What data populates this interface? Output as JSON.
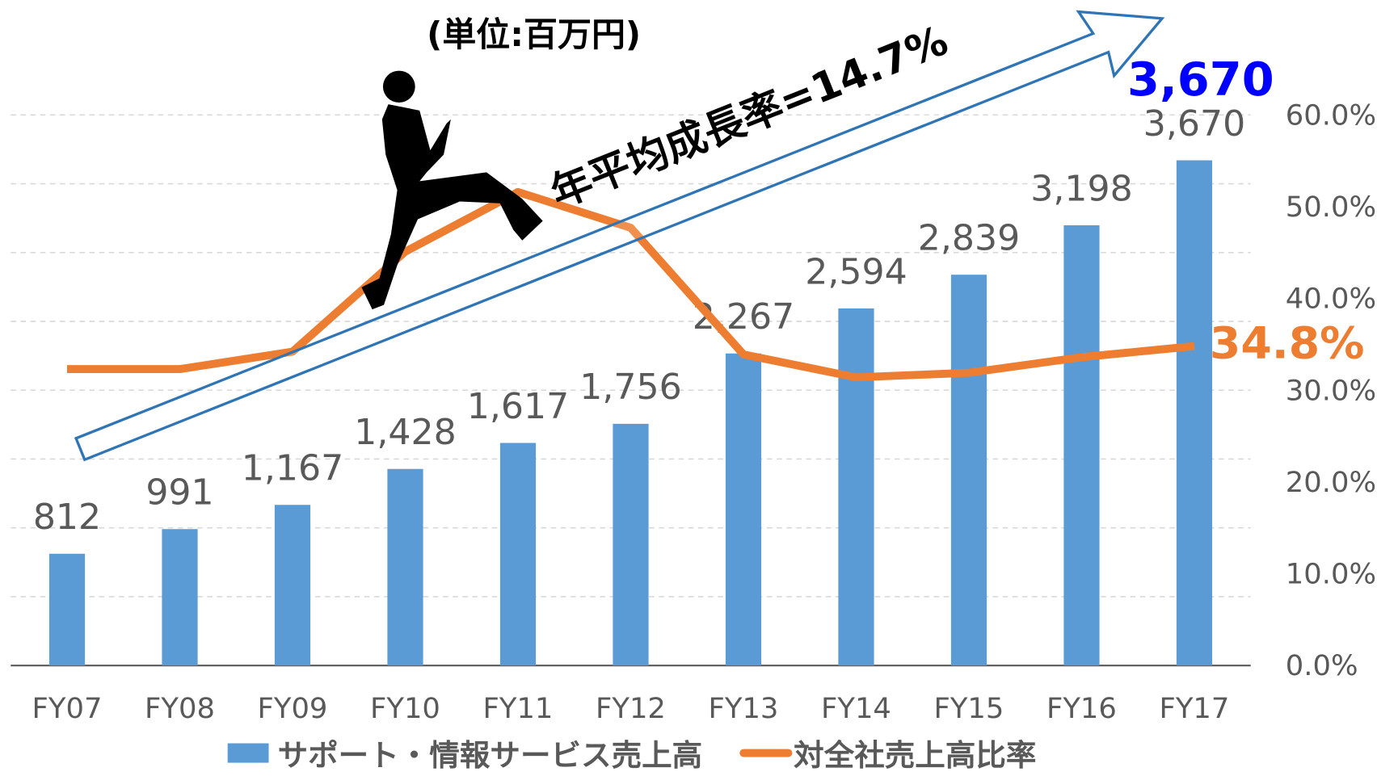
{
  "chart_data": {
    "type": "bar_line",
    "unit_note": "(単位:百万円)",
    "arrow_label": "年平均成長率=14.7%",
    "highlight_bar_label": "3,670",
    "highlight_line_label": "34.8%",
    "categories": [
      "FY07",
      "FY08",
      "FY09",
      "FY10",
      "FY11",
      "FY12",
      "FY13",
      "FY14",
      "FY15",
      "FY16",
      "FY17"
    ],
    "series": [
      {
        "name": "サポート・情報サービス売上高",
        "type": "bar",
        "color": "#5b9bd5",
        "values": [
          812,
          991,
          1167,
          1428,
          1617,
          1756,
          2267,
          2594,
          2839,
          3198,
          3670
        ],
        "value_labels": [
          "812",
          "991",
          "1,167",
          "1,428",
          "1,617",
          "1,756",
          "2,267",
          "2,594",
          "2,839",
          "3,198",
          "3,670"
        ]
      },
      {
        "name": "対全社売上高比率",
        "type": "line",
        "color": "#ed7d31",
        "axis": "y2",
        "values": [
          32.3,
          32.3,
          34.2,
          45.1,
          51.6,
          47.7,
          33.9,
          31.4,
          31.9,
          33.6,
          34.8
        ]
      }
    ],
    "ylim": [
      0,
      4000
    ],
    "yticks": [
      0,
      500,
      1000,
      1500,
      2000,
      2500,
      3000,
      3500,
      4000
    ],
    "y2lim": [
      0,
      60
    ],
    "y2ticks": [
      {
        "value": 0,
        "label": "0.0%"
      },
      {
        "value": 10,
        "label": "10.0%"
      },
      {
        "value": 20,
        "label": "20.0%"
      },
      {
        "value": 30,
        "label": "30.0%"
      },
      {
        "value": 40,
        "label": "40.0%"
      },
      {
        "value": 50,
        "label": "50.0%"
      },
      {
        "value": 60,
        "label": "60.0%"
      }
    ],
    "grid": true
  }
}
